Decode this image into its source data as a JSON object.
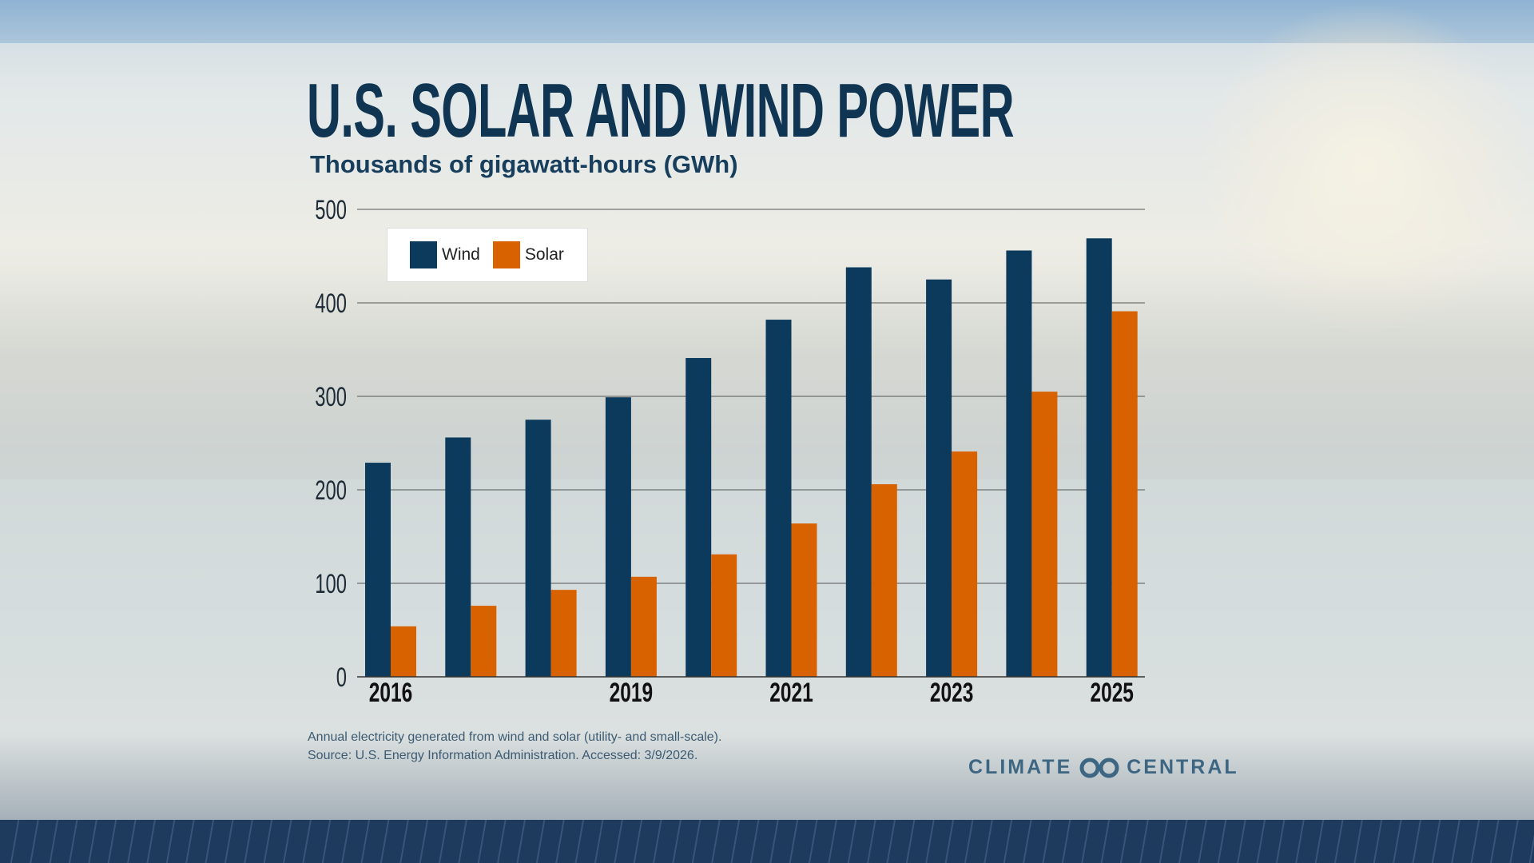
{
  "title": "U.S. SOLAR AND WIND POWER",
  "subtitle": "Thousands of gigawatt-hours (GWh)",
  "footnote": {
    "line1": "Annual electricity generated from wind and solar (utility- and small-scale).",
    "line2": "Source: U.S. Energy Information Administration. Accessed: 3/9/2026."
  },
  "logo": {
    "left": "CLIMATE",
    "right": "CENTRAL"
  },
  "colors": {
    "wind": "#0c3a5c",
    "solar": "#d96200"
  },
  "chart_data": {
    "type": "bar",
    "title": "U.S. SOLAR AND WIND POWER",
    "ylabel": "Thousands of gigawatt-hours (GWh)",
    "categories": [
      "2016",
      "2017",
      "2018",
      "2019",
      "2020",
      "2021",
      "2022",
      "2023",
      "2024",
      "2025"
    ],
    "xtick_labels": [
      "2016",
      "",
      "",
      "2019",
      "",
      "2021",
      "",
      "2023",
      "",
      "2025"
    ],
    "yticks": [
      0,
      100,
      200,
      300,
      400,
      500
    ],
    "ylim": [
      0,
      500
    ],
    "grid": true,
    "legend_position": "top-left",
    "series": [
      {
        "name": "Wind",
        "values": [
          229,
          256,
          275,
          299,
          341,
          382,
          438,
          425,
          456,
          469
        ]
      },
      {
        "name": "Solar",
        "values": [
          54,
          76,
          93,
          107,
          131,
          164,
          206,
          241,
          305,
          391
        ]
      }
    ]
  }
}
